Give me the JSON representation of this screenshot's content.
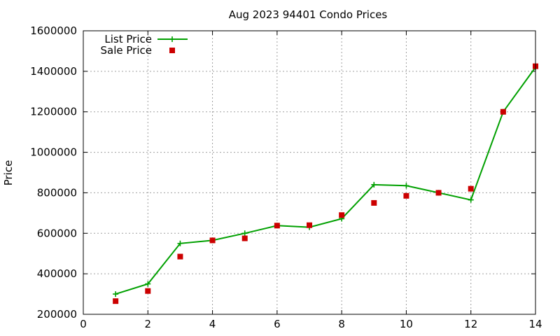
{
  "chart_data": {
    "type": "line",
    "title": "Aug 2023 94401 Condo Prices",
    "xlabel": "",
    "ylabel": "Price",
    "xlim": [
      0,
      14
    ],
    "ylim": [
      200000,
      1600000
    ],
    "xticks": [
      0,
      2,
      4,
      6,
      8,
      10,
      12,
      14
    ],
    "yticks": [
      200000,
      400000,
      600000,
      800000,
      1000000,
      1200000,
      1400000,
      1600000
    ],
    "grid": true,
    "legend_position": "top-left",
    "series": [
      {
        "name": "List Price",
        "style": "line+points",
        "color": "#00a000",
        "marker": "plus",
        "x": [
          1,
          2,
          3,
          4,
          5,
          6,
          7,
          8,
          9,
          10,
          11,
          12,
          13,
          14
        ],
        "y": [
          300000,
          350000,
          550000,
          565000,
          600000,
          638000,
          630000,
          672000,
          840000,
          835000,
          800000,
          765000,
          1200000,
          1420000
        ]
      },
      {
        "name": "Sale Price",
        "style": "points",
        "color": "#cc0000",
        "marker": "square",
        "x": [
          1,
          2,
          3,
          4,
          5,
          6,
          7,
          8,
          9,
          10,
          11,
          12,
          13,
          14
        ],
        "y": [
          265000,
          315000,
          485000,
          565000,
          575000,
          638000,
          640000,
          690000,
          750000,
          785000,
          800000,
          820000,
          1200000,
          1425000
        ]
      }
    ]
  }
}
